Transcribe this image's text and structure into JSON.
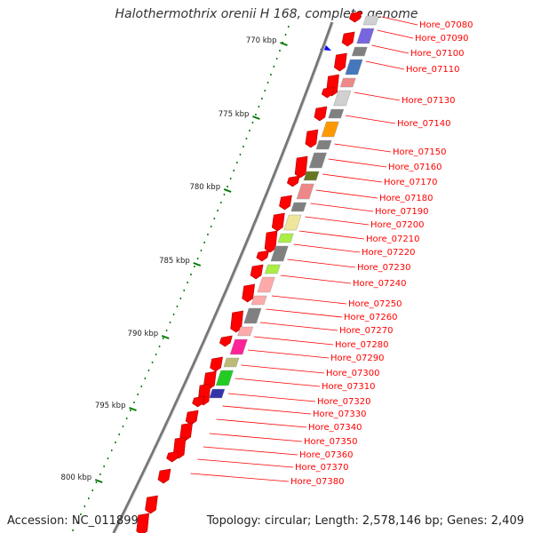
{
  "title": "Halothermothrix orenii H 168, complete genome",
  "footer": {
    "accession": "Accession: NC_011899",
    "topology": "Topology: circular; Length: 2,578,146 bp; Genes: 2,409"
  },
  "scale_labels": [
    "770 kbp",
    "775 kbp",
    "780 kbp",
    "785 kbp",
    "790 kbp",
    "795 kbp",
    "800 kbp"
  ],
  "gene_labels": [
    "Hore_07080",
    "Hore_07090",
    "Hore_07100",
    "Hore_07110",
    "Hore_07130",
    "Hore_07140",
    "Hore_07150",
    "Hore_07160",
    "Hore_07170",
    "Hore_07180",
    "Hore_07190",
    "Hore_07200",
    "Hore_07210",
    "Hore_07220",
    "Hore_07230",
    "Hore_07240",
    "Hore_07250",
    "Hore_07260",
    "Hore_07270",
    "Hore_07280",
    "Hore_07290",
    "Hore_07300",
    "Hore_07310",
    "Hore_07320",
    "Hore_07330",
    "Hore_07340",
    "Hore_07350",
    "Hore_07360",
    "Hore_07370",
    "Hore_07380"
  ],
  "cog_colors": [
    "#d0d0d0",
    "#808080",
    "#7766dd",
    "#4477bb",
    "#ee8888",
    "#ff9900",
    "#667722",
    "#f0e699",
    "#aaee44",
    "#ffaaaa",
    "#ff2299",
    "#bbbb77",
    "#22cc22",
    "#3333aa"
  ],
  "colors": {
    "gene": "#ff0000",
    "backbone": "#777777",
    "label": "#ff0000",
    "tick": "#007700",
    "marker": "#0000ee"
  }
}
